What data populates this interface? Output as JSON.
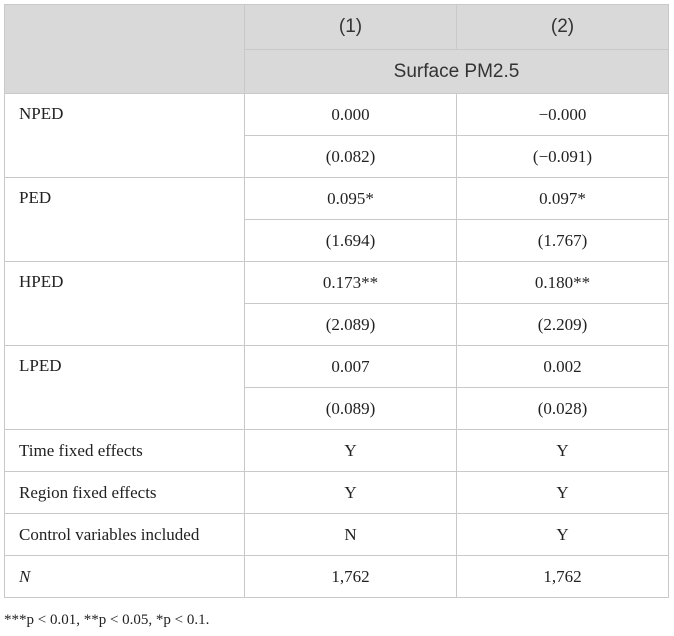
{
  "header": {
    "col1": "(1)",
    "col2": "(2)",
    "dependent_variable": "Surface PM2.5"
  },
  "rows": [
    {
      "label": "NPED",
      "coef": [
        "0.000",
        "−0.000"
      ],
      "tstat": [
        "(0.082)",
        "(−0.091)"
      ]
    },
    {
      "label": "PED",
      "coef": [
        "0.095*",
        "0.097*"
      ],
      "tstat": [
        "(1.694)",
        "(1.767)"
      ]
    },
    {
      "label": "HPED",
      "coef": [
        "0.173**",
        "0.180**"
      ],
      "tstat": [
        "(2.089)",
        "(2.209)"
      ]
    },
    {
      "label": "LPED",
      "coef": [
        "0.007",
        "0.002"
      ],
      "tstat": [
        "(0.089)",
        "(0.028)"
      ]
    }
  ],
  "controls": [
    {
      "label": "Time fixed effects",
      "values": [
        "Y",
        "Y"
      ]
    },
    {
      "label": "Region fixed effects",
      "values": [
        "Y",
        "Y"
      ]
    },
    {
      "label": "Control variables included",
      "values": [
        "N",
        "Y"
      ]
    },
    {
      "label": "N",
      "values": [
        "1,762",
        "1,762"
      ]
    }
  ],
  "footnote": "***p < 0.01, **p < 0.05, *p < 0.1."
}
